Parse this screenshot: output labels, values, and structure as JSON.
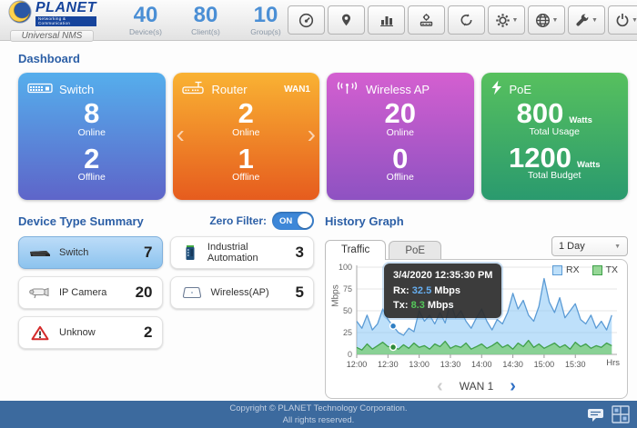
{
  "header": {
    "logo": {
      "brand": "PLANET",
      "tagline": "Networking & Communication",
      "product": "Universal NMS"
    },
    "stats": [
      {
        "value": "40",
        "label": "Device(s)"
      },
      {
        "value": "80",
        "label": "Client(s)"
      },
      {
        "value": "10",
        "label": "Group(s)"
      }
    ],
    "toolbar": {
      "buttons": [
        {
          "icon": "gauge-icon"
        },
        {
          "icon": "map-pin-icon"
        },
        {
          "icon": "bar-chart-icon"
        },
        {
          "icon": "device-management-icon"
        },
        {
          "icon": "refresh-icon"
        },
        {
          "icon": "settings-gear-icon",
          "dropdown": true
        },
        {
          "icon": "globe-icon",
          "dropdown": true
        },
        {
          "icon": "tools-wrench-icon",
          "dropdown": true
        },
        {
          "icon": "power-icon",
          "dropdown": true
        }
      ]
    }
  },
  "page": {
    "title": "Dashboard"
  },
  "cards": [
    {
      "title": "Switch",
      "icon": "switch-icon",
      "colors": [
        "#55aeec",
        "#5e65c9"
      ],
      "metrics": [
        {
          "value": "8",
          "label": "Online"
        },
        {
          "value": "2",
          "label": "Offline"
        }
      ]
    },
    {
      "title": "Router",
      "badge": "WAN1",
      "icon": "router-icon",
      "colors": [
        "#f9b233",
        "#e65c1e"
      ],
      "carousel": true,
      "metrics": [
        {
          "value": "2",
          "label": "Online"
        },
        {
          "value": "1",
          "label": "Offline"
        }
      ]
    },
    {
      "title": "Wireless AP",
      "icon": "wireless-antenna-icon",
      "colors": [
        "#d45fd0",
        "#8e52c2"
      ],
      "metrics": [
        {
          "value": "20",
          "label": "Online"
        },
        {
          "value": "0",
          "label": "Offline"
        }
      ]
    },
    {
      "title": "PoE",
      "icon": "lightning-bolt-icon",
      "colors": [
        "#57c05e",
        "#2a9a6e"
      ],
      "metrics": [
        {
          "value": "800",
          "unit": "Watts",
          "label": "Total Usage"
        },
        {
          "value": "1200",
          "unit": "Watts",
          "label": "Total Budget"
        }
      ]
    }
  ],
  "summary": {
    "title": "Device Type Summary",
    "zero_filter_label": "Zero Filter:",
    "toggle_state": "ON",
    "items": [
      {
        "label": "Switch",
        "count": "7",
        "icon": "switch-device-icon",
        "selected": true
      },
      {
        "label": "IP Camera",
        "count": "20",
        "icon": "ip-camera-icon",
        "selected": false
      },
      {
        "label": "Unknow",
        "count": "2",
        "icon": "warning-triangle-icon",
        "selected": false
      },
      {
        "label": "Industrial Automation",
        "count": "3",
        "icon": "industrial-switch-icon",
        "selected": false
      },
      {
        "label": "Wireless(AP)",
        "count": "5",
        "icon": "wireless-ap-device-icon",
        "selected": false
      }
    ]
  },
  "history": {
    "title": "History Graph",
    "tabs": [
      "Traffic",
      "PoE"
    ],
    "active_tab": "Traffic",
    "range_select": "1 Day",
    "nav_label": "WAN 1"
  },
  "chart_data": {
    "type": "area",
    "title": "Traffic history (WAN 1, 1 Day view)",
    "ylabel": "Mbps",
    "xlabel": "Hrs",
    "ylim": [
      0,
      100
    ],
    "yticks": [
      0,
      25,
      50,
      75,
      100
    ],
    "grid": true,
    "legend_position": "top-right",
    "x_ticks": [
      "12:00",
      "12:30",
      "13:00",
      "13:30",
      "14:00",
      "14:30",
      "15:00",
      "15:30"
    ],
    "x_tick_minutes": [
      0,
      30,
      60,
      90,
      120,
      150,
      180,
      210
    ],
    "x_step_minutes": 5,
    "x_total_minutes": 250,
    "series": [
      {
        "name": "RX",
        "color": "#5b9bd5",
        "fill": "rgba(137,198,245,0.55)",
        "values": [
          38,
          30,
          45,
          28,
          35,
          52,
          40,
          32.5,
          25,
          22,
          30,
          26,
          50,
          38,
          45,
          35,
          48,
          36,
          60,
          42,
          50,
          38,
          30,
          42,
          52,
          38,
          28,
          40,
          35,
          48,
          70,
          52,
          62,
          45,
          38,
          55,
          87,
          60,
          48,
          65,
          42,
          50,
          58,
          40,
          35,
          45,
          30,
          38,
          28,
          45
        ]
      },
      {
        "name": "TX",
        "color": "#3fa04a",
        "fill": "rgba(124,205,124,0.8)",
        "values": [
          8,
          5,
          12,
          6,
          10,
          14,
          9,
          8.3,
          6,
          11,
          7,
          13,
          8,
          10,
          6,
          12,
          9,
          15,
          7,
          10,
          8,
          13,
          6,
          9,
          12,
          7,
          10,
          14,
          8,
          11,
          6,
          13,
          9,
          16,
          8,
          12,
          7,
          10,
          13,
          8,
          11,
          6,
          14,
          9,
          12,
          7,
          10,
          8,
          13,
          10
        ]
      }
    ],
    "tooltip": {
      "timestamp": "3/4/2020 12:35:30 PM",
      "rx_label": "Rx:",
      "rx_value": "32.5",
      "tx_label": "Tx:",
      "tx_value": "8.3",
      "unit": "Mbps",
      "marker_x_minute": 35
    }
  },
  "footer": {
    "line1": "Copyright © PLANET Technology Corporation.",
    "line2": "All rights reserved."
  },
  "colors": {
    "heading_blue": "#2c5fa6",
    "stat_number_blue": "#4b8fd5",
    "toggle_on_blue": "#3d87d8",
    "footer_bg": "#3c6a9e",
    "selected_row_blue": "#8cc3ee"
  }
}
